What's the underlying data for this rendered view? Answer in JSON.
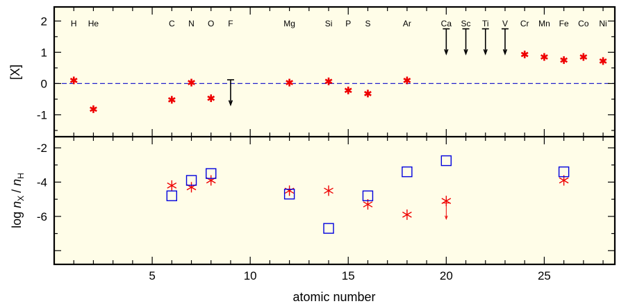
{
  "chart_data": [
    {
      "type": "scatter",
      "ylabel": "[X]",
      "ylim": [
        -1.7,
        2.45
      ],
      "y_ticks": [
        "2",
        "1",
        "0",
        "-1"
      ],
      "y_tick_values": [
        2,
        1,
        0,
        -1
      ],
      "reference_line": {
        "y": 0,
        "style": "dashed",
        "color": "#2222cc"
      },
      "element_labels": [
        {
          "z": 1,
          "label": "H"
        },
        {
          "z": 2,
          "label": "He"
        },
        {
          "z": 6,
          "label": "C"
        },
        {
          "z": 7,
          "label": "N"
        },
        {
          "z": 8,
          "label": "O"
        },
        {
          "z": 9,
          "label": "F"
        },
        {
          "z": 12,
          "label": "Mg"
        },
        {
          "z": 14,
          "label": "Si"
        },
        {
          "z": 15,
          "label": "P"
        },
        {
          "z": 16,
          "label": "S"
        },
        {
          "z": 18,
          "label": "Ar"
        },
        {
          "z": 20,
          "label": "Ca"
        },
        {
          "z": 21,
          "label": "Sc"
        },
        {
          "z": 22,
          "label": "Ti"
        },
        {
          "z": 23,
          "label": "V"
        },
        {
          "z": 24,
          "label": "Cr"
        },
        {
          "z": 25,
          "label": "Mn"
        },
        {
          "z": 26,
          "label": "Fe"
        },
        {
          "z": 27,
          "label": "Co"
        },
        {
          "z": 28,
          "label": "Ni"
        }
      ],
      "series": [
        {
          "marker": "red-asterisk",
          "color": "#ee0000",
          "points": [
            {
              "x": 1,
              "y": 0.1
            },
            {
              "x": 2,
              "y": -0.82
            },
            {
              "x": 6,
              "y": -0.52
            },
            {
              "x": 7,
              "y": 0.03
            },
            {
              "x": 8,
              "y": -0.47
            },
            {
              "x": 12,
              "y": 0.03
            },
            {
              "x": 14,
              "y": 0.07
            },
            {
              "x": 15,
              "y": -0.22
            },
            {
              "x": 16,
              "y": -0.32
            },
            {
              "x": 18,
              "y": 0.1
            },
            {
              "x": 24,
              "y": 0.93
            },
            {
              "x": 25,
              "y": 0.85
            },
            {
              "x": 26,
              "y": 0.75
            },
            {
              "x": 27,
              "y": 0.85
            },
            {
              "x": 28,
              "y": 0.72
            }
          ]
        },
        {
          "marker": "black-upper-limit-arrow",
          "color": "#000000",
          "points": [
            {
              "x": 9,
              "y": 0.12
            },
            {
              "x": 20,
              "y": 1.75
            },
            {
              "x": 21,
              "y": 1.75
            },
            {
              "x": 22,
              "y": 1.75
            },
            {
              "x": 23,
              "y": 1.75
            }
          ]
        }
      ]
    },
    {
      "type": "scatter",
      "xlabel": "atomic number",
      "ylabel": "log n_X / n_H",
      "ylim": [
        -8.8,
        -1.35
      ],
      "xlim": [
        0,
        28.6
      ],
      "x_ticks": [
        "5",
        "10",
        "15",
        "20",
        "25"
      ],
      "x_tick_values": [
        5,
        10,
        15,
        20,
        25
      ],
      "y_ticks": [
        "-2",
        "-4",
        "-6"
      ],
      "y_tick_values": [
        -2,
        -4,
        -6
      ],
      "series": [
        {
          "marker": "red-asterisk",
          "color": "#ee0000",
          "points": [
            {
              "x": 6,
              "y": -4.2
            },
            {
              "x": 7,
              "y": -4.3
            },
            {
              "x": 8,
              "y": -3.9
            },
            {
              "x": 12,
              "y": -4.5
            },
            {
              "x": 14,
              "y": -4.5
            },
            {
              "x": 16,
              "y": -5.3
            },
            {
              "x": 18,
              "y": -5.9
            },
            {
              "x": 20,
              "y": -5.1,
              "upper_limit": true
            },
            {
              "x": 26,
              "y": -3.9
            }
          ]
        },
        {
          "marker": "blue-open-square",
          "color": "#0000dd",
          "points": [
            {
              "x": 6,
              "y": -4.8
            },
            {
              "x": 7,
              "y": -3.9
            },
            {
              "x": 8,
              "y": -3.5
            },
            {
              "x": 12,
              "y": -4.7
            },
            {
              "x": 14,
              "y": -6.7
            },
            {
              "x": 16,
              "y": -4.8
            },
            {
              "x": 18,
              "y": -3.4
            },
            {
              "x": 20,
              "y": -2.75
            },
            {
              "x": 26,
              "y": -3.4
            }
          ]
        }
      ]
    }
  ],
  "colors": {
    "panel_bg": "#fffde8",
    "red": "#ee0000",
    "blue": "#0000dd",
    "dash": "#2222cc"
  }
}
